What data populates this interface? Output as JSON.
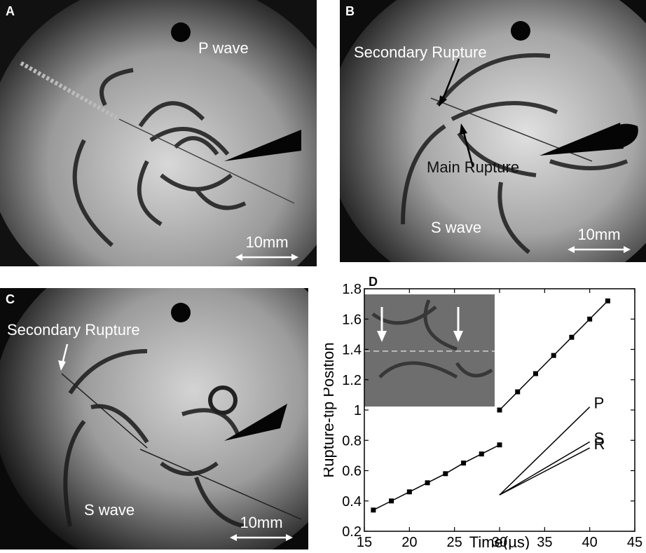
{
  "panels": {
    "a": {
      "label": "A",
      "wave_label": "P wave",
      "scale_label": "10mm"
    },
    "b": {
      "label": "B",
      "secondary_label": "Secondary Rupture",
      "main_label": "Main Rupture",
      "wave_label": "S wave",
      "scale_label": "10mm"
    },
    "c": {
      "label": "C",
      "secondary_label": "Secondary Rupture",
      "wave_label": "S wave",
      "scale_label": "10mm"
    },
    "d": {
      "label": "D"
    }
  },
  "chart_data": {
    "type": "scatter",
    "title": "",
    "xlabel": "Time(µs)",
    "ylabel": "Rupture-tip Position",
    "xlim": [
      15,
      45
    ],
    "ylim": [
      0.2,
      1.8
    ],
    "xticks": [
      15,
      20,
      25,
      30,
      35,
      40,
      45
    ],
    "yticks": [
      0.2,
      0.4,
      0.6,
      0.8,
      1,
      1.2,
      1.4,
      1.6,
      1.8
    ],
    "ytick_labels": [
      "0.2",
      "0.4",
      "0.6",
      "0.8",
      "1",
      "1.2",
      "1.4",
      "1.6",
      "1.8"
    ],
    "grid": false,
    "series": [
      {
        "name": "",
        "marker": "square",
        "line": true,
        "x": [
          16,
          18,
          20,
          22,
          24,
          26,
          28,
          30
        ],
        "y": [
          0.34,
          0.4,
          0.46,
          0.52,
          0.58,
          0.65,
          0.71,
          0.77
        ]
      },
      {
        "name": "",
        "marker": "square",
        "line": true,
        "x": [
          30,
          32,
          34,
          36,
          38,
          40,
          42
        ],
        "y": [
          1.0,
          1.12,
          1.24,
          1.36,
          1.48,
          1.6,
          1.72
        ]
      }
    ],
    "reference_lines": [
      {
        "name": "P",
        "x": [
          30,
          40
        ],
        "y": [
          0.44,
          1.02
        ]
      },
      {
        "name": "S",
        "x": [
          30,
          40
        ],
        "y": [
          0.44,
          0.79
        ]
      },
      {
        "name": "R",
        "x": [
          30,
          40
        ],
        "y": [
          0.44,
          0.75
        ]
      }
    ],
    "inset": {
      "description_visible": false
    }
  }
}
